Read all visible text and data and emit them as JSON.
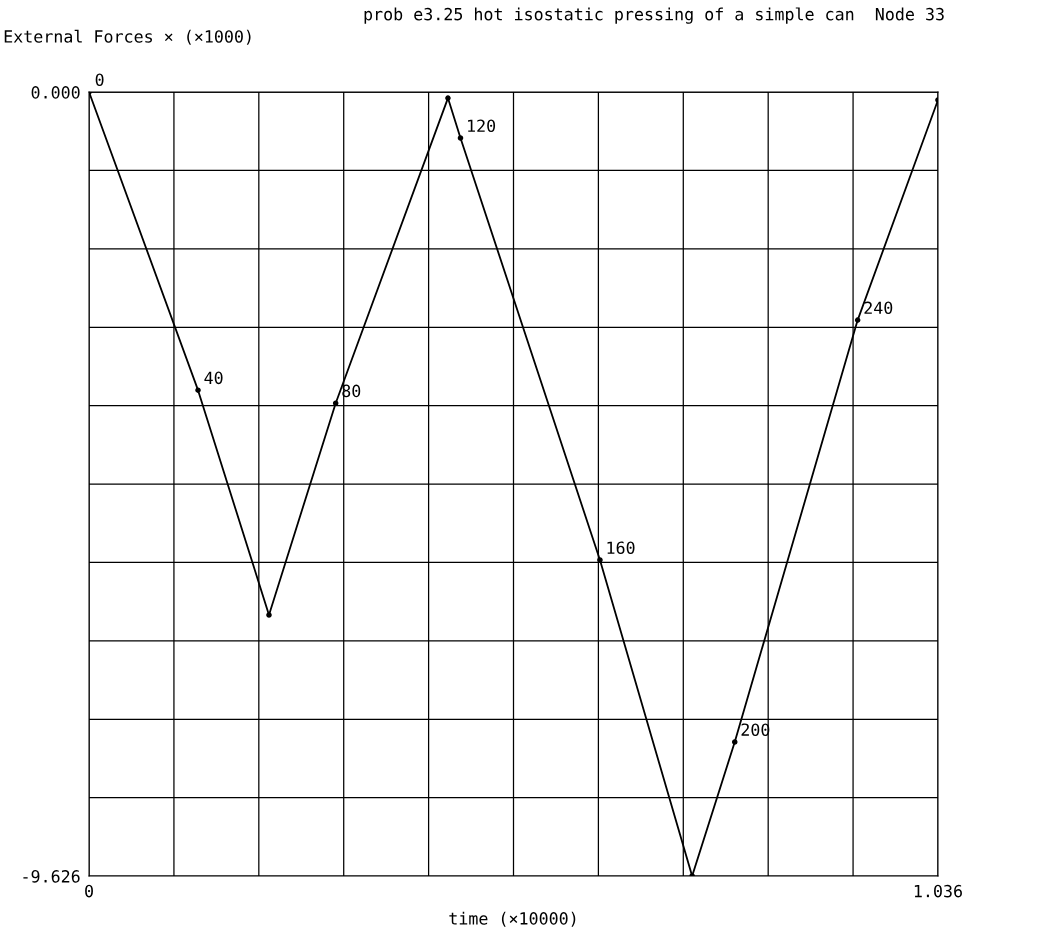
{
  "chart_data": {
    "type": "line",
    "title": "prob e3.25 hot isostatic pressing of a simple can  Node 33",
    "ylabel": "External Forces × (×1000)",
    "xlabel": "time (×10000)",
    "x": [
      0,
      0.133,
      0.2196,
      0.301,
      0.438,
      0.4533,
      0.6235,
      0.736,
      0.788,
      0.938,
      1.036
    ],
    "series": [
      {
        "color": "#000000",
        "values": [
          0,
          -3.66,
          -6.42,
          -3.82,
          -0.074,
          -0.565,
          -5.746,
          -9.626,
          -7.98,
          -2.8,
          -0.098
        ]
      }
    ],
    "marker": "circle",
    "line_style": "solid",
    "grid": true,
    "xlim": [
      0,
      1.036
    ],
    "ylim": [
      -9.626,
      0
    ],
    "xticks": [
      {
        "value": 0,
        "label": "0"
      },
      {
        "value": 0.1036,
        "label": null
      },
      {
        "value": 0.2072,
        "label": null
      },
      {
        "value": 0.3108,
        "label": null
      },
      {
        "value": 0.4144,
        "label": null
      },
      {
        "value": 0.518,
        "label": null
      },
      {
        "value": 0.6216,
        "label": null
      },
      {
        "value": 0.7252,
        "label": null
      },
      {
        "value": 0.8288,
        "label": null
      },
      {
        "value": 0.9324,
        "label": null
      },
      {
        "value": 1.036,
        "label": "1.036"
      }
    ],
    "yticks": [
      {
        "value": -9.626,
        "label": "-9.626"
      },
      {
        "value": -8.6634,
        "label": null
      },
      {
        "value": -7.7008,
        "label": null
      },
      {
        "value": -6.7382,
        "label": null
      },
      {
        "value": -5.7756,
        "label": null
      },
      {
        "value": -4.813,
        "label": null
      },
      {
        "value": -3.8504,
        "label": null
      },
      {
        "value": -2.8878,
        "label": null
      },
      {
        "value": -1.9252,
        "label": null
      },
      {
        "value": -0.9626,
        "label": null
      },
      {
        "value": 0,
        "label": "0.000"
      }
    ],
    "annotations": [
      {
        "text": "0",
        "x": 0,
        "y": 0
      },
      {
        "text": "40",
        "x": 0.133,
        "y": -3.66
      },
      {
        "text": "80",
        "x": 0.301,
        "y": -3.82
      },
      {
        "text": "120",
        "x": 0.4533,
        "y": -0.565
      },
      {
        "text": "160",
        "x": 0.6235,
        "y": -5.746
      },
      {
        "text": "200",
        "x": 0.788,
        "y": -7.98
      },
      {
        "text": "240",
        "x": 0.938,
        "y": -2.8
      }
    ]
  }
}
